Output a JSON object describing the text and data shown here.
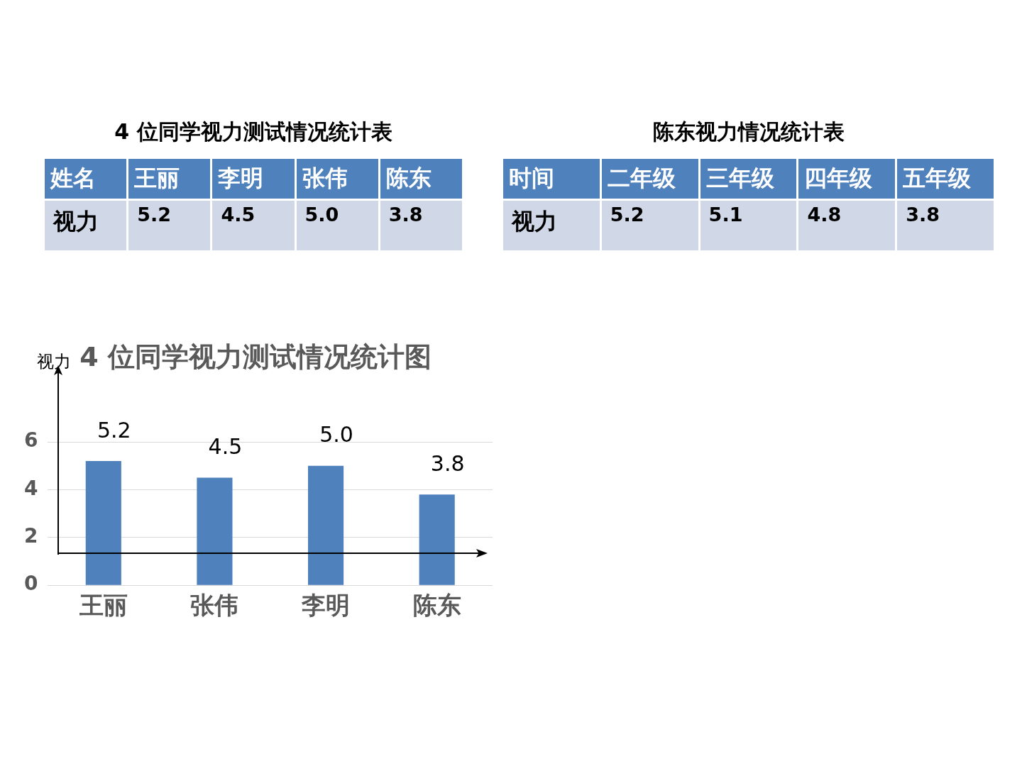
{
  "chart_data": [
    {
      "type": "other",
      "title": "4 位同学视力测试情况统计表",
      "xlabel": "姓名",
      "ylabel": "视力",
      "categories": [
        "王丽",
        "李明",
        "张伟",
        "陈东"
      ],
      "values": [
        5.2,
        4.5,
        5.0,
        3.8
      ],
      "value_labels": [
        "5.2",
        "4.5",
        "5.0",
        "3.8"
      ]
    },
    {
      "type": "other",
      "title": "陈东视力情况统计表",
      "xlabel": "时间",
      "ylabel": "视力",
      "categories": [
        "二年级",
        "三年级",
        "四年级",
        "五年级"
      ],
      "values": [
        5.2,
        5.1,
        4.8,
        3.8
      ],
      "data_labels": true
    },
    {
      "type": "bar",
      "title": "4 位同学视力测试情况统计图",
      "ylabel": "视力",
      "categories": [
        "王丽",
        "张伟",
        "李明",
        "陈东"
      ],
      "values": [
        5.2,
        4.5,
        5.0,
        3.8
      ],
      "value_labels": [
        "5.2",
        "4.5",
        "5.0",
        "3.8"
      ],
      "color": "#4f81bd",
      "ylim": [
        0,
        6
      ],
      "yticks": [
        0,
        2,
        4,
        6
      ],
      "grid": "y",
      "legend": false
    }
  ]
}
